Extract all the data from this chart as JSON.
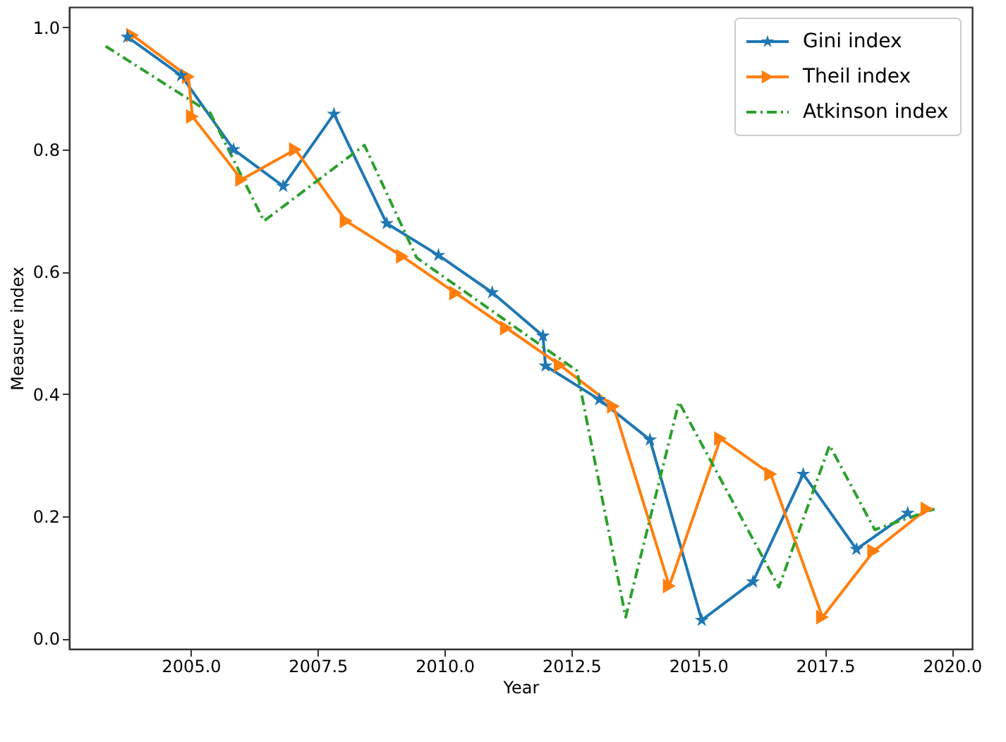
{
  "chart_data": {
    "type": "line",
    "xlabel": "Year",
    "ylabel": "Measure index",
    "xlim": [
      2002.6,
      2020.4
    ],
    "ylim": [
      -0.017,
      1.033
    ],
    "xticks": [
      {
        "value": 2005,
        "label": "2005.0"
      },
      {
        "value": 2007.5,
        "label": "2007.5"
      },
      {
        "value": 2010,
        "label": "2010.0"
      },
      {
        "value": 2012.5,
        "label": "2012.5"
      },
      {
        "value": 2015,
        "label": "2015.0"
      },
      {
        "value": 2017.5,
        "label": "2017.5"
      },
      {
        "value": 2020,
        "label": "2020.0"
      }
    ],
    "yticks": [
      {
        "value": 0,
        "label": "0.0"
      },
      {
        "value": 0.2,
        "label": "0.2"
      },
      {
        "value": 0.4,
        "label": "0.4"
      },
      {
        "value": 0.6,
        "label": "0.6"
      },
      {
        "value": 0.8,
        "label": "0.8"
      },
      {
        "value": 1,
        "label": "1.0"
      }
    ],
    "grid": false,
    "legend": "top right",
    "series": [
      {
        "name": "Gini index",
        "color": "#1f77b4",
        "marker": "star",
        "line_style": "solid",
        "x": [
          2003.75,
          2004.81,
          2005.84,
          2006.82,
          2007.82,
          2008.86,
          2009.88,
          2010.94,
          2011.94,
          2011.99,
          2013.05,
          2014.05,
          2015.07,
          2016.08,
          2017.07,
          2018.12,
          2019.13
        ],
        "values": [
          0.984,
          0.921,
          0.8,
          0.74,
          0.858,
          0.679,
          0.627,
          0.566,
          0.495,
          0.446,
          0.391,
          0.325,
          0.03,
          0.093,
          0.269,
          0.146,
          0.205
        ]
      },
      {
        "name": "Theil index",
        "color": "#ff7f0e",
        "marker": "triangle",
        "line_style": "solid",
        "x": [
          2003.85,
          2004.95,
          2005.03,
          2006.0,
          2007.06,
          2008.06,
          2009.17,
          2010.22,
          2011.22,
          2012.28,
          2013.33,
          2014.43,
          2015.44,
          2016.43,
          2017.45,
          2018.46,
          2019.51
        ],
        "values": [
          0.987,
          0.919,
          0.854,
          0.751,
          0.8,
          0.683,
          0.625,
          0.565,
          0.508,
          0.447,
          0.38,
          0.086,
          0.327,
          0.269,
          0.035,
          0.143,
          0.212
        ]
      },
      {
        "name": "Atkinson index",
        "color": "#2ca02c",
        "marker": "none",
        "line_style": "dashdot",
        "x": [
          2003.32,
          2005.38,
          2006.44,
          2008.42,
          2009.45,
          2012.61,
          2013.57,
          2014.62,
          2016.59,
          2017.59,
          2018.48,
          2019.66
        ],
        "values": [
          0.969,
          0.86,
          0.683,
          0.807,
          0.623,
          0.438,
          0.035,
          0.387,
          0.084,
          0.316,
          0.178,
          0.212
        ]
      }
    ]
  }
}
